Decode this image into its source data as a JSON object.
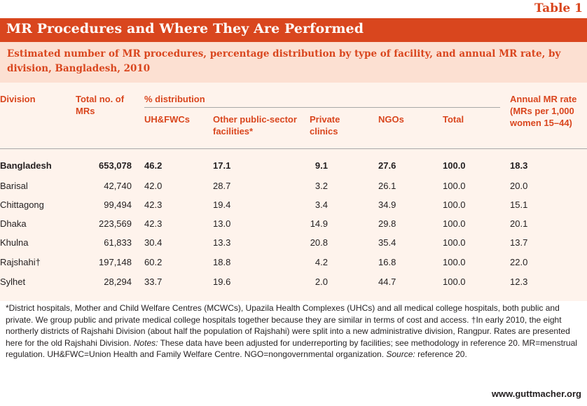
{
  "table_label": "Table 1",
  "title": "MR Procedures and Where They Are Performed",
  "subtitle": "Estimated number of MR procedures, percentage distribution by type of facility, and annual MR rate, by division, Bangladesh, 2010",
  "headers": {
    "division": "Division",
    "total_no": "Total no. of MRs",
    "pct_distribution": "% distribution",
    "uhfwc": "UH&FWCs",
    "other_public": "Other public-sector facilities*",
    "private": "Private clinics",
    "ngos": "NGOs",
    "total": "Total",
    "annual_rate": "Annual MR rate (MRs per 1,000 women 15–44)"
  },
  "rows": [
    {
      "division": "Bangladesh",
      "total_mrs": "653,078",
      "uhfwc": "46.2",
      "other_public": "17.1",
      "private": "9.1",
      "ngos": "27.6",
      "total": "100.0",
      "rate": "18.3"
    },
    {
      "division": "Barisal",
      "total_mrs": "42,740",
      "uhfwc": "42.0",
      "other_public": "28.7",
      "private": "3.2",
      "ngos": "26.1",
      "total": "100.0",
      "rate": "20.0"
    },
    {
      "division": "Chittagong",
      "total_mrs": "99,494",
      "uhfwc": "42.3",
      "other_public": "19.4",
      "private": "3.4",
      "ngos": "34.9",
      "total": "100.0",
      "rate": "15.1"
    },
    {
      "division": "Dhaka",
      "total_mrs": "223,569",
      "uhfwc": "42.3",
      "other_public": "13.0",
      "private": "14.9",
      "ngos": "29.8",
      "total": "100.0",
      "rate": "20.1"
    },
    {
      "division": "Khulna",
      "total_mrs": "61,833",
      "uhfwc": "30.4",
      "other_public": "13.3",
      "private": "20.8",
      "ngos": "35.4",
      "total": "100.0",
      "rate": "13.7"
    },
    {
      "division": "Rajshahi†",
      "total_mrs": "197,148",
      "uhfwc": "60.2",
      "other_public": "18.8",
      "private": "4.2",
      "ngos": "16.8",
      "total": "100.0",
      "rate": "22.0"
    },
    {
      "division": "Sylhet",
      "total_mrs": "28,294",
      "uhfwc": "33.7",
      "other_public": "19.6",
      "private": "2.0",
      "ngos": "44.7",
      "total": "100.0",
      "rate": "12.3"
    }
  ],
  "notes": {
    "part1": "*District hospitals, Mother and Child Welfare Centres (MCWCs), Upazila Health Complexes (UHCs) and all medical college hospitals, both public and private. We group public and private medical college hospitals together because they are similar in terms of cost and access. †In early 2010, the eight northerly districts of Rajshahi Division (about half the population of Rajshahi) were split into a new administrative division, Rangpur. Rates are presented here for the old Rajshahi Division. ",
    "notes_label": "Notes:",
    "part2": " These data have been adjusted for underreporting by facilities; see methodology in reference 20. MR=menstrual regulation. UH&FWC=Union Health and Family Welfare Centre. NGO=nongovernmental organization. ",
    "source_label": "Source:",
    "part3": " reference 20."
  },
  "website": "www.guttmacher.org",
  "colors": {
    "accent": "#d9461e",
    "subtitle_band": "#fce0d2",
    "body_band": "#fef3ec",
    "text": "#231f20"
  }
}
